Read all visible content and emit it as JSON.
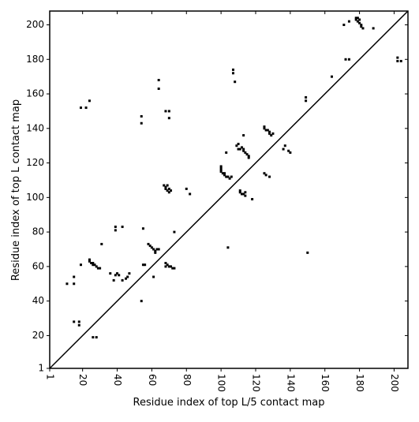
{
  "chart_data": {
    "type": "scatter",
    "xlabel": "Residue index of top L/5 contact map",
    "ylabel": "Residue index of top L contact map",
    "color": "#000000",
    "xlim": [
      1,
      208
    ],
    "ylim": [
      1,
      208
    ],
    "xticks": [
      1,
      20,
      40,
      60,
      80,
      100,
      120,
      140,
      160,
      180,
      200
    ],
    "yticks": [
      1,
      20,
      40,
      60,
      80,
      100,
      120,
      140,
      160,
      180,
      200
    ],
    "x": [
      150,
      104,
      11,
      15,
      15,
      15,
      18,
      18,
      26,
      28,
      19,
      24,
      24,
      25,
      26,
      26,
      27,
      28,
      29,
      30,
      31,
      39,
      39,
      43,
      36,
      38,
      39,
      40,
      41,
      43,
      45,
      46,
      47,
      54,
      55,
      56,
      55,
      54,
      54,
      64,
      64,
      22,
      19,
      24,
      61,
      58,
      59,
      60,
      61,
      62,
      63,
      64,
      62,
      68,
      69,
      70,
      71,
      72,
      73,
      68,
      73,
      68,
      70,
      70,
      67,
      68,
      68,
      69,
      70,
      70,
      71,
      69,
      80,
      82,
      100,
      100,
      100,
      100,
      101,
      102,
      102,
      103,
      104,
      105,
      106,
      103,
      107,
      107,
      108,
      109,
      110,
      110,
      111,
      112,
      113,
      113,
      114,
      115,
      116,
      116,
      113,
      111,
      111,
      112,
      113,
      114,
      114,
      118,
      125,
      125,
      126,
      127,
      128,
      128,
      129,
      130,
      125,
      126,
      128,
      137,
      136,
      139,
      140,
      149,
      149,
      164,
      171,
      172,
      174,
      174,
      178,
      178,
      179,
      180,
      181,
      181,
      182,
      180,
      179,
      188,
      202,
      202,
      204
    ],
    "values": [
      68,
      71,
      50,
      50,
      54,
      28,
      28,
      26,
      19,
      19,
      61,
      64,
      63,
      62,
      62,
      61,
      61,
      60,
      59,
      59,
      73,
      83,
      81,
      83,
      56,
      52,
      55,
      56,
      55,
      52,
      53,
      54,
      56,
      40,
      61,
      61,
      82,
      143,
      147,
      168,
      163,
      152,
      152,
      156,
      54,
      73,
      72,
      71,
      70,
      69,
      70,
      70,
      68,
      62,
      61,
      60,
      60,
      59,
      59,
      60,
      80,
      150,
      150,
      146,
      107,
      106,
      105,
      104,
      103,
      105,
      104,
      107,
      105,
      102,
      118,
      117,
      116,
      115,
      114,
      113,
      114,
      112,
      112,
      111,
      112,
      126,
      174,
      172,
      167,
      130,
      131,
      128,
      128,
      129,
      128,
      127,
      126,
      125,
      124,
      123,
      136,
      104,
      103,
      102,
      102,
      103,
      101,
      99,
      141,
      140,
      139,
      139,
      138,
      137,
      136,
      137,
      114,
      113,
      112,
      130,
      128,
      127,
      126,
      158,
      156,
      170,
      200,
      180,
      180,
      202,
      204,
      203,
      202,
      201,
      200,
      199,
      198,
      203,
      204,
      198,
      181,
      179,
      179
    ]
  }
}
